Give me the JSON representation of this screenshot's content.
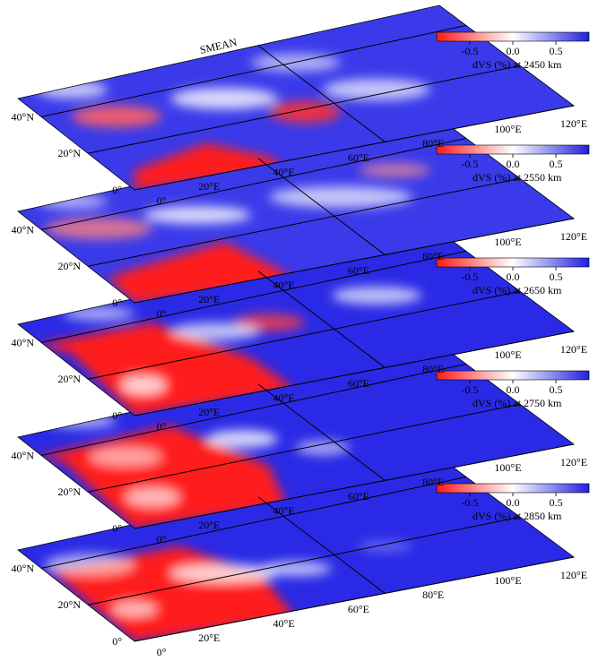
{
  "figure_title": "SMEAN",
  "layers": [
    {
      "depth_label": "dV",
      "unit_label": "S (%) at 2450 km",
      "ticks": [
        "-0.5",
        "0.0",
        "0.5"
      ]
    },
    {
      "depth_label": "dV",
      "unit_label": "S (%) at 2550 km",
      "ticks": [
        "-0.5",
        "0.0",
        "0.5"
      ]
    },
    {
      "depth_label": "dV",
      "unit_label": "S (%) at 2650 km",
      "ticks": [
        "-0.5",
        "0.0",
        "0.5"
      ]
    },
    {
      "depth_label": "dV",
      "unit_label": "S (%) at 2750 km",
      "ticks": [
        "-0.5",
        "0.0",
        "0.5"
      ]
    },
    {
      "depth_label": "dV",
      "unit_label": "S (%) at 2850 km",
      "ticks": [
        "-0.5",
        "0.0",
        "0.5"
      ]
    }
  ],
  "lat_labels": [
    "0°",
    "20°N",
    "40°N"
  ],
  "lon_labels": [
    "0°",
    "20°E",
    "40°E",
    "60°E",
    "80°E",
    "100°E",
    "120°E"
  ],
  "colors": {
    "slow": "#ff1a1a",
    "neutral": "#ffffff",
    "fast": "#1f1fe0"
  }
}
